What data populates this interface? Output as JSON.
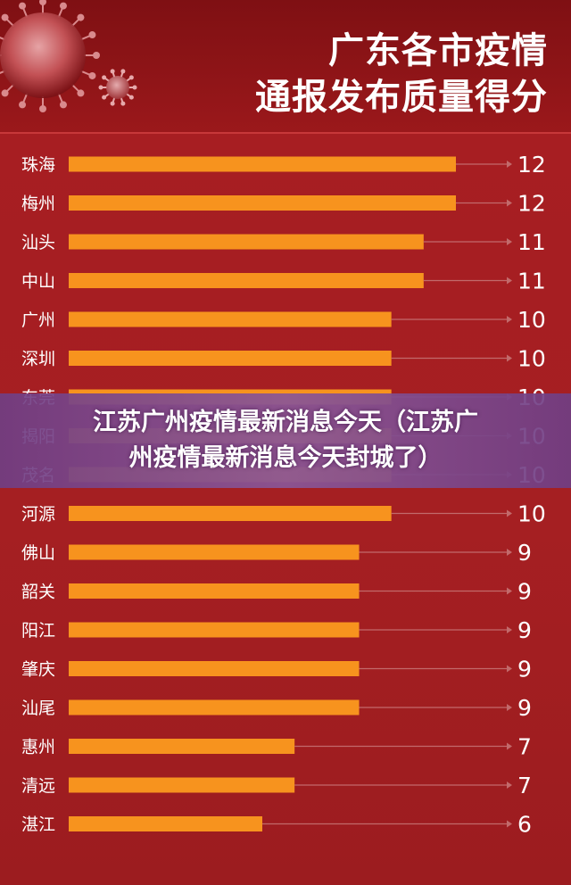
{
  "header": {
    "title_line1": "广东各市疫情",
    "title_line2": "通报发布质量得分"
  },
  "overlay": {
    "line1": "江苏广州疫情最新消息今天（江苏广",
    "line2": "州疫情最新消息今天封城了）"
  },
  "colors": {
    "background": "#a51f22",
    "bar": "#f7931e",
    "text": "#ffffff",
    "overlay": "#8a5696"
  },
  "chart_data": {
    "type": "bar",
    "orientation": "horizontal",
    "title": "广东各市疫情通报发布质量得分",
    "categories": [
      "珠海",
      "梅州",
      "汕头",
      "中山",
      "广州",
      "深圳",
      "东莞",
      "揭阳",
      "茂名",
      "河源",
      "佛山",
      "韶关",
      "阳江",
      "肇庆",
      "汕尾",
      "惠州",
      "清远",
      "湛江"
    ],
    "values": [
      12,
      12,
      11,
      11,
      10,
      10,
      10,
      10,
      10,
      10,
      9,
      9,
      9,
      9,
      9,
      7,
      7,
      6
    ],
    "xlim": [
      0,
      12
    ],
    "grid": false,
    "legend": "none"
  }
}
